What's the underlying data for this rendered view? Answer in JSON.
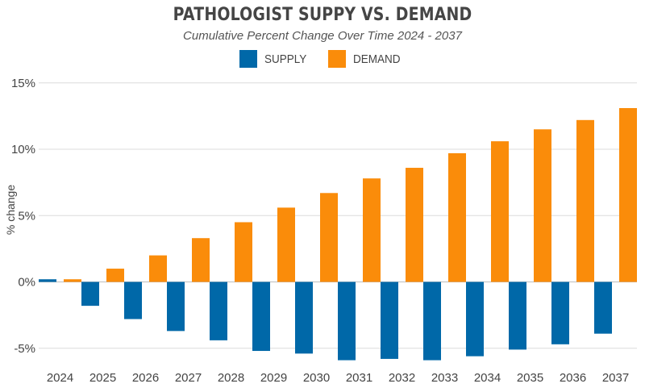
{
  "chart_data": {
    "type": "bar",
    "title": "PATHOLOGIST SUPPY VS. DEMAND",
    "subtitle": "Cumulative Percent Change Over Time 2024 - 2037",
    "xlabel": "",
    "ylabel": "% change",
    "ylim": [
      -6,
      15
    ],
    "yticks": [
      15,
      10,
      5,
      0,
      -5
    ],
    "ytick_labels": [
      "15%",
      "10%",
      "5%",
      "0%",
      "-5%"
    ],
    "grid": true,
    "legend_position": "top-center",
    "categories": [
      "2024",
      "2025",
      "2026",
      "2027",
      "2028",
      "2029",
      "2030",
      "2031",
      "2032",
      "2033",
      "2034",
      "2035",
      "2036",
      "2037"
    ],
    "series": [
      {
        "name": "SUPPLY",
        "color": "#0068A8",
        "values": [
          0.2,
          -1.8,
          -2.8,
          -3.7,
          -4.4,
          -5.2,
          -5.4,
          -5.9,
          -5.8,
          -5.9,
          -5.6,
          -5.1,
          -4.7,
          -3.9
        ]
      },
      {
        "name": "DEMAND",
        "color": "#FA8C0A",
        "values": [
          0.2,
          1.0,
          2.0,
          3.3,
          4.5,
          5.6,
          6.7,
          7.8,
          8.6,
          9.7,
          10.6,
          11.5,
          12.2,
          13.1
        ]
      }
    ]
  }
}
